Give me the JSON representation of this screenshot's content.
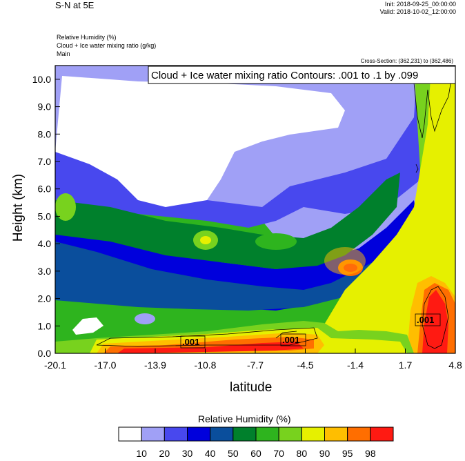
{
  "header": {
    "title": "S-N at 5E",
    "init": "Init: 2018-09-25_00:00:00",
    "valid": "Valid: 2018-10-02_12:00:00",
    "fields": [
      "Relative Humidity   (%)",
      "Cloud + Ice water mixing ratio   (g/kg)",
      "Main"
    ],
    "cross_section": "Cross-Section: (362,231) to (362,486)"
  },
  "chart_data": {
    "type": "heatmap",
    "title": "Cloud + Ice water mixing ratio Contours: .001 to .1 by .099",
    "xlabel": "latitude",
    "ylabel": "Height (km)",
    "x_ticks": [
      "-20.1",
      "-17.0",
      "-13.9",
      "-10.8",
      "-7.7",
      "-4.5",
      "-1.4",
      "1.7",
      "4.8"
    ],
    "y_ticks": [
      "0.0",
      "1.0",
      "2.0",
      "3.0",
      "4.0",
      "5.0",
      "6.0",
      "7.0",
      "8.0",
      "9.0",
      "10.0"
    ],
    "xlim": [
      -20.1,
      4.8
    ],
    "ylim": [
      0,
      10.5
    ],
    "contour_labels": [
      ".001",
      ".001",
      ".001"
    ],
    "colorbar": {
      "title": "Relative Humidity  (%)",
      "labels": [
        "10",
        "20",
        "30",
        "40",
        "50",
        "60",
        "70",
        "80",
        "90",
        "95",
        "98"
      ],
      "colors": [
        "#ffffff",
        "#a0a0f6",
        "#4848ee",
        "#0000dc",
        "#0a4e9c",
        "#00802c",
        "#2eb41e",
        "#78d21e",
        "#e6f000",
        "#ffbe00",
        "#ff6e00",
        "#ff1a12"
      ]
    }
  }
}
